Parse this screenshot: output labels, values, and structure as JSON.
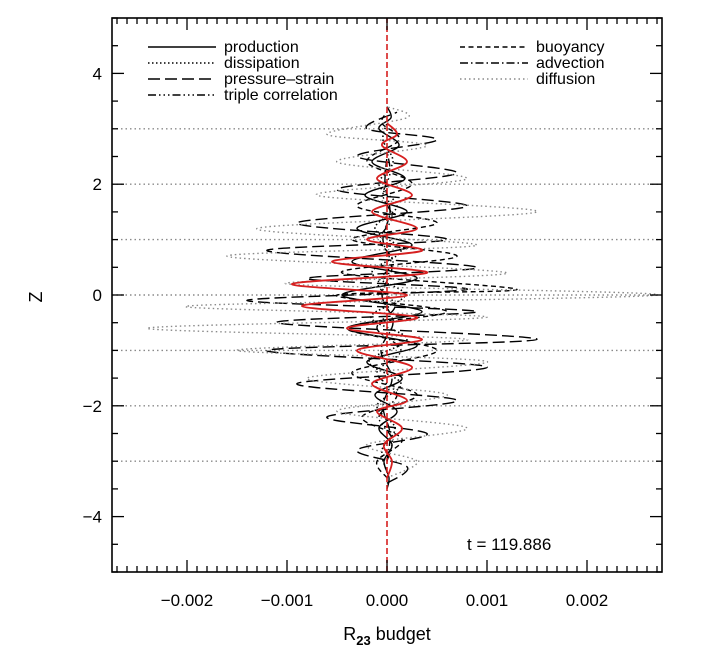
{
  "chart_data": {
    "type": "line",
    "xlabel": "R",
    "xlabel_sub": "23",
    "xlabel_suffix": " budget",
    "ylabel": "Z",
    "xlim": [
      -0.00275,
      0.00275
    ],
    "ylim": [
      -5,
      5
    ],
    "xticks": [
      -0.002,
      -0.001,
      0.0,
      0.001,
      0.002
    ],
    "xtick_labels": [
      "−0.002",
      "−0.001",
      "0.000",
      "0.001",
      "0.002"
    ],
    "yticks": [
      -4,
      -2,
      0,
      2,
      4
    ],
    "ytick_labels": [
      "−4",
      "−2",
      "0",
      "2",
      "4"
    ],
    "annotation": "t = 119.886",
    "legend_placement": "top",
    "grid": false,
    "series": [
      {
        "name": "production",
        "style": "solid",
        "color": "#000000",
        "points": [
          [
            0.0,
            -3.5
          ],
          [
            2e-05,
            -3.3
          ],
          [
            -3e-05,
            -3.0
          ],
          [
            5e-05,
            -2.7
          ],
          [
            -8e-05,
            -2.4
          ],
          [
            0.0001,
            -2.1
          ],
          [
            -0.00012,
            -1.8
          ],
          [
            0.00015,
            -1.5
          ],
          [
            -0.0002,
            -1.2
          ],
          [
            0.0003,
            -0.9
          ],
          [
            -0.0004,
            -0.6
          ],
          [
            0.00035,
            -0.3
          ],
          [
            -0.00045,
            0.0
          ],
          [
            0.0003,
            0.3
          ],
          [
            -0.00035,
            0.6
          ],
          [
            0.00025,
            0.9
          ],
          [
            -0.0003,
            1.2
          ],
          [
            0.0002,
            1.5
          ],
          [
            -0.00022,
            1.8
          ],
          [
            0.00018,
            2.1
          ],
          [
            -0.00015,
            2.4
          ],
          [
            0.00012,
            2.7
          ],
          [
            -8e-05,
            3.0
          ],
          [
            4e-05,
            3.2
          ],
          [
            0.0,
            3.4
          ]
        ]
      },
      {
        "name": "dissipation",
        "style": "dotted",
        "color": "#000000",
        "points": [
          [
            0.0,
            -3.2
          ],
          [
            -5e-05,
            -2.8
          ],
          [
            8e-05,
            -2.4
          ],
          [
            -0.0001,
            -2.0
          ],
          [
            0.00014,
            -1.6
          ],
          [
            -0.00018,
            -1.2
          ],
          [
            0.0002,
            -0.8
          ],
          [
            -0.00016,
            -0.4
          ],
          [
            0.00018,
            0.0
          ],
          [
            -0.00015,
            0.4
          ],
          [
            0.00014,
            0.8
          ],
          [
            -0.00012,
            1.2
          ],
          [
            0.0001,
            1.6
          ],
          [
            -8e-05,
            2.0
          ],
          [
            6e-05,
            2.4
          ],
          [
            -4e-05,
            2.8
          ],
          [
            0.0,
            3.1
          ]
        ]
      },
      {
        "name": "pressure–strain",
        "style": "longdash",
        "color": "#000000",
        "points": [
          [
            0.0,
            -3.4
          ],
          [
            0.0002,
            -3.1
          ],
          [
            -0.0003,
            -2.8
          ],
          [
            0.0004,
            -2.5
          ],
          [
            -0.0006,
            -2.2
          ],
          [
            0.0007,
            -1.9
          ],
          [
            -0.0009,
            -1.6
          ],
          [
            0.001,
            -1.3
          ],
          [
            -0.0012,
            -1.0
          ],
          [
            0.0015,
            -0.8
          ],
          [
            -0.0011,
            -0.5
          ],
          [
            0.0009,
            -0.3
          ],
          [
            -0.0014,
            -0.1
          ],
          [
            0.0008,
            0.1
          ],
          [
            -0.0008,
            0.3
          ],
          [
            0.0009,
            0.5
          ],
          [
            -0.0012,
            0.8
          ],
          [
            0.0006,
            1.0
          ],
          [
            -0.0009,
            1.3
          ],
          [
            0.0008,
            1.6
          ],
          [
            -0.0005,
            1.9
          ],
          [
            0.0007,
            2.2
          ],
          [
            -0.0003,
            2.5
          ],
          [
            0.0005,
            2.8
          ],
          [
            -0.0002,
            3.0
          ],
          [
            0.0001,
            3.3
          ]
        ]
      },
      {
        "name": "triple correlation",
        "style": "dashdotdot",
        "color": "#000000",
        "points": [
          [
            0.0,
            -3.0
          ],
          [
            5e-05,
            -2.6
          ],
          [
            -8e-05,
            -2.2
          ],
          [
            0.0001,
            -1.8
          ],
          [
            -0.0001,
            -1.4
          ],
          [
            0.00014,
            -1.0
          ],
          [
            -0.0001,
            -0.6
          ],
          [
            8e-05,
            -0.2
          ],
          [
            -9e-05,
            0.2
          ],
          [
            6e-05,
            0.6
          ],
          [
            -7e-05,
            1.0
          ],
          [
            5e-05,
            1.4
          ],
          [
            -4e-05,
            1.8
          ],
          [
            3e-05,
            2.2
          ],
          [
            0.0,
            2.6
          ]
        ]
      },
      {
        "name": "buoyancy",
        "style": "shortdash",
        "color": "#000000",
        "points": [
          [
            0.0,
            -3.3
          ],
          [
            -0.0001,
            -3.0
          ],
          [
            0.00015,
            -2.6
          ],
          [
            -0.00025,
            -2.2
          ],
          [
            0.0003,
            -1.8
          ],
          [
            -0.00035,
            -1.4
          ],
          [
            0.0005,
            -1.0
          ],
          [
            -0.0004,
            -0.6
          ],
          [
            0.0006,
            -0.3
          ],
          [
            -0.0005,
            0.0
          ],
          [
            0.0013,
            0.1
          ],
          [
            -0.00045,
            0.4
          ],
          [
            0.0007,
            0.7
          ],
          [
            -0.00035,
            1.0
          ],
          [
            0.0005,
            1.3
          ],
          [
            -0.0003,
            1.6
          ],
          [
            0.00025,
            2.0
          ],
          [
            -0.0002,
            2.4
          ],
          [
            0.00012,
            2.8
          ],
          [
            -5e-05,
            3.1
          ],
          [
            0.0,
            3.3
          ]
        ]
      },
      {
        "name": "advection",
        "style": "dashdot",
        "color": "#000000",
        "points": [
          [
            0.0,
            -3.0
          ],
          [
            3e-05,
            -2.5
          ],
          [
            -4e-05,
            -2.0
          ],
          [
            5e-05,
            -1.5
          ],
          [
            -6e-05,
            -1.0
          ],
          [
            6e-05,
            -0.5
          ],
          [
            -5e-05,
            0.0
          ],
          [
            5e-05,
            0.5
          ],
          [
            -4e-05,
            1.0
          ],
          [
            3e-05,
            1.5
          ],
          [
            -2e-05,
            2.0
          ],
          [
            0.0,
            2.5
          ]
        ]
      },
      {
        "name": "diffusion",
        "style": "grey-dotted",
        "color": "#888888",
        "points": [
          [
            0.0,
            -3.3
          ],
          [
            0.0003,
            -3.0
          ],
          [
            -0.0002,
            -2.7
          ],
          [
            0.0008,
            -2.4
          ],
          [
            -0.0005,
            -2.1
          ],
          [
            0.0006,
            -1.8
          ],
          [
            -0.0008,
            -1.5
          ],
          [
            0.001,
            -1.2
          ],
          [
            -0.0015,
            -1.0
          ],
          [
            0.0008,
            -0.8
          ],
          [
            -0.0024,
            -0.6
          ],
          [
            0.001,
            -0.4
          ],
          [
            -0.002,
            -0.2
          ],
          [
            0.0027,
            0.0
          ],
          [
            -0.001,
            0.2
          ],
          [
            0.0012,
            0.4
          ],
          [
            -0.0016,
            0.7
          ],
          [
            0.0009,
            0.9
          ],
          [
            -0.0013,
            1.2
          ],
          [
            0.0015,
            1.5
          ],
          [
            -0.0007,
            1.8
          ],
          [
            0.0008,
            2.1
          ],
          [
            -0.0005,
            2.4
          ],
          [
            0.0004,
            2.7
          ],
          [
            -0.0006,
            2.9
          ],
          [
            0.0002,
            3.2
          ],
          [
            0.0,
            3.4
          ]
        ]
      },
      {
        "name": "",
        "style": "red-solid",
        "color": "#d62020",
        "points": [
          [
            0.0,
            -3.3
          ],
          [
            5e-05,
            -3.0
          ],
          [
            -3e-05,
            -2.7
          ],
          [
            0.00015,
            -2.4
          ],
          [
            -0.0001,
            -2.1
          ],
          [
            0.0002,
            -1.9
          ],
          [
            -0.00015,
            -1.6
          ],
          [
            0.00025,
            -1.3
          ],
          [
            -0.0003,
            -1.0
          ],
          [
            0.00035,
            -0.8
          ],
          [
            -0.0004,
            -0.6
          ],
          [
            0.0003,
            -0.4
          ],
          [
            -0.00085,
            -0.2
          ],
          [
            0.0002,
            0.0
          ],
          [
            -0.00095,
            0.2
          ],
          [
            0.0004,
            0.4
          ],
          [
            -0.00055,
            0.6
          ],
          [
            0.00035,
            0.8
          ],
          [
            -0.0002,
            1.0
          ],
          [
            0.0003,
            1.2
          ],
          [
            -0.00015,
            1.5
          ],
          [
            0.00025,
            1.8
          ],
          [
            -0.0001,
            2.1
          ],
          [
            0.0002,
            2.4
          ],
          [
            -5e-05,
            2.7
          ],
          [
            0.0001,
            2.9
          ],
          [
            0.0,
            3.1
          ]
        ]
      },
      {
        "name": "",
        "style": "red-dashed-vertical",
        "color": "#d62020",
        "points": [
          [
            0.0,
            -5
          ],
          [
            0.0,
            5
          ]
        ]
      }
    ],
    "hlines": [
      {
        "y": -3,
        "style": "grey-dotted"
      },
      {
        "y": -2,
        "style": "grey-dotted"
      },
      {
        "y": -1,
        "style": "grey-dotted"
      },
      {
        "y": 0,
        "style": "grey-dotted"
      },
      {
        "y": 1,
        "style": "grey-dotted"
      },
      {
        "y": 2,
        "style": "grey-dotted"
      },
      {
        "y": 3,
        "style": "grey-dotted"
      }
    ]
  }
}
